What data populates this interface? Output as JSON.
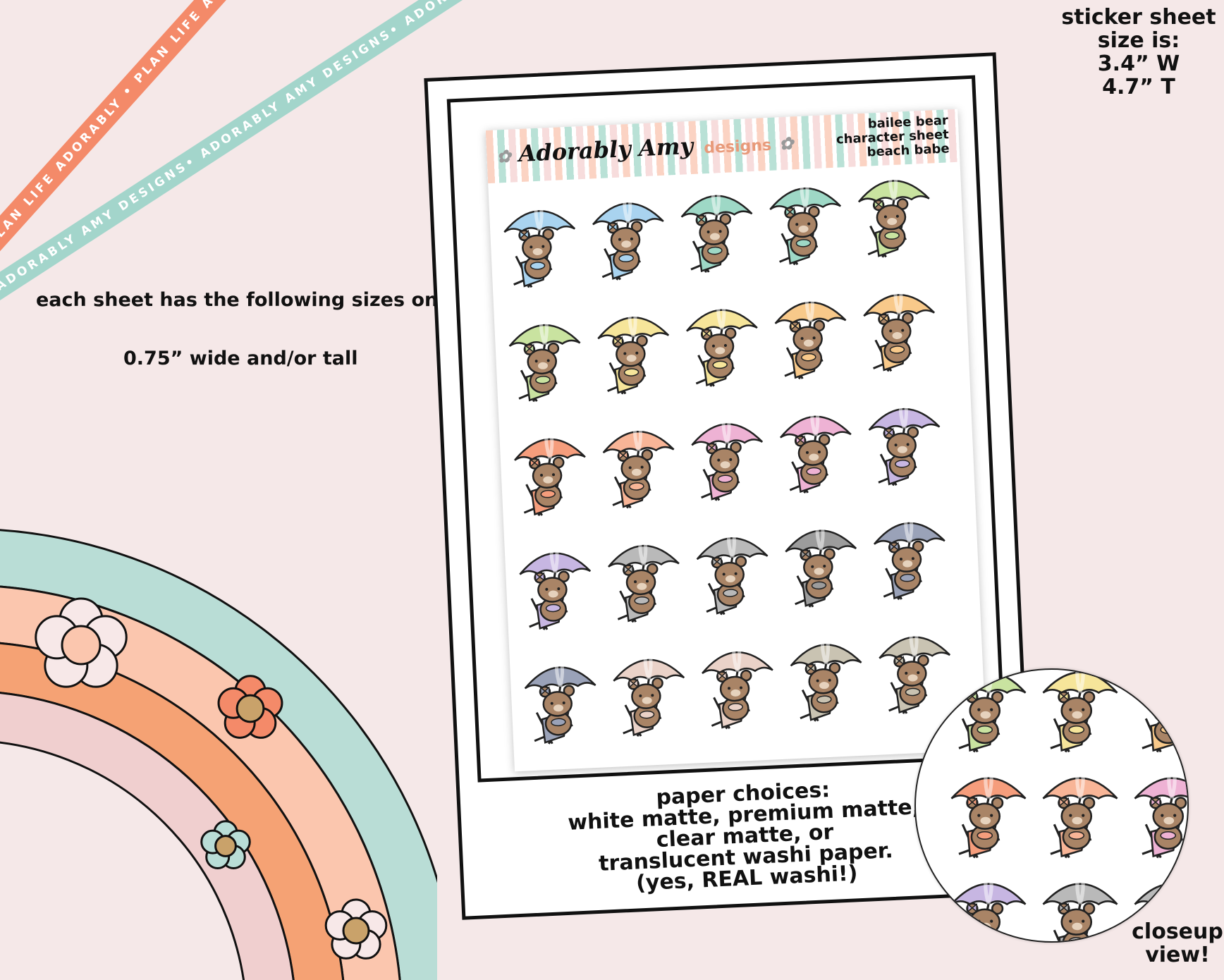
{
  "ribbons": {
    "orange": {
      "text": "PLAN LIFE ADORABLY • PLAN LIFE ADORABLY • PLAN LIFE AD",
      "color": "#f48a69"
    },
    "teal": {
      "text": "ADORABLY AMY DESIGNS• ADORABLY AMY DESIGNS• ADORABLY AMY DESIGNS•",
      "color": "#a3d5cb"
    }
  },
  "info": {
    "sizes_heading": "each sheet has the following sizes on it:",
    "size_value": "0.75” wide and/or tall"
  },
  "sheet_size": {
    "line1": "sticker sheet",
    "line2": "size is:",
    "line3": "3.4” W",
    "line4": "4.7” T"
  },
  "sheet": {
    "logo_script": "Adorably Amy",
    "logo_designs": "designs",
    "title": {
      "line1": "bailee bear",
      "line2": "character sheet",
      "line3": "beach babe"
    },
    "stickers": [
      "#a9d3ef",
      "#a9d3ef",
      "#9ed8c6",
      "#9ed8c6",
      "#c9e3a0",
      "#c9e3a0",
      "#f6e59a",
      "#f6e59a",
      "#f8c98a",
      "#f8c98a",
      "#f59d7c",
      "#f8b597",
      "#eeb2d4",
      "#eeb2d4",
      "#c7b6e2",
      "#c7b6e2",
      "#b9b9b9",
      "#b9b9b9",
      "#9c9c9c",
      "#9aa2b8",
      "#9aa2b8",
      "#ead2c8",
      "#ead2c8",
      "#c9c3b2",
      "#c9c3b2"
    ]
  },
  "paper": {
    "line1": "paper choices:",
    "line2": "white matte, premium matte,",
    "line3": "clear matte, or",
    "line4": "translucent washi paper.",
    "line5": "(yes, REAL washi!)"
  },
  "closeup": {
    "label1": "closeup",
    "label2": "view!",
    "stickers": [
      "#c9e3a0",
      "#f6e59a",
      "#f8c98a",
      "#f59d7c",
      "#f8b597",
      "#eeb2d4",
      "#c7b6e2",
      "#b9b9b9"
    ]
  },
  "rainbow": {
    "bands": [
      "#b9ddd6",
      "#fbc6ae",
      "#f5a274",
      "#f0cfcf"
    ]
  }
}
